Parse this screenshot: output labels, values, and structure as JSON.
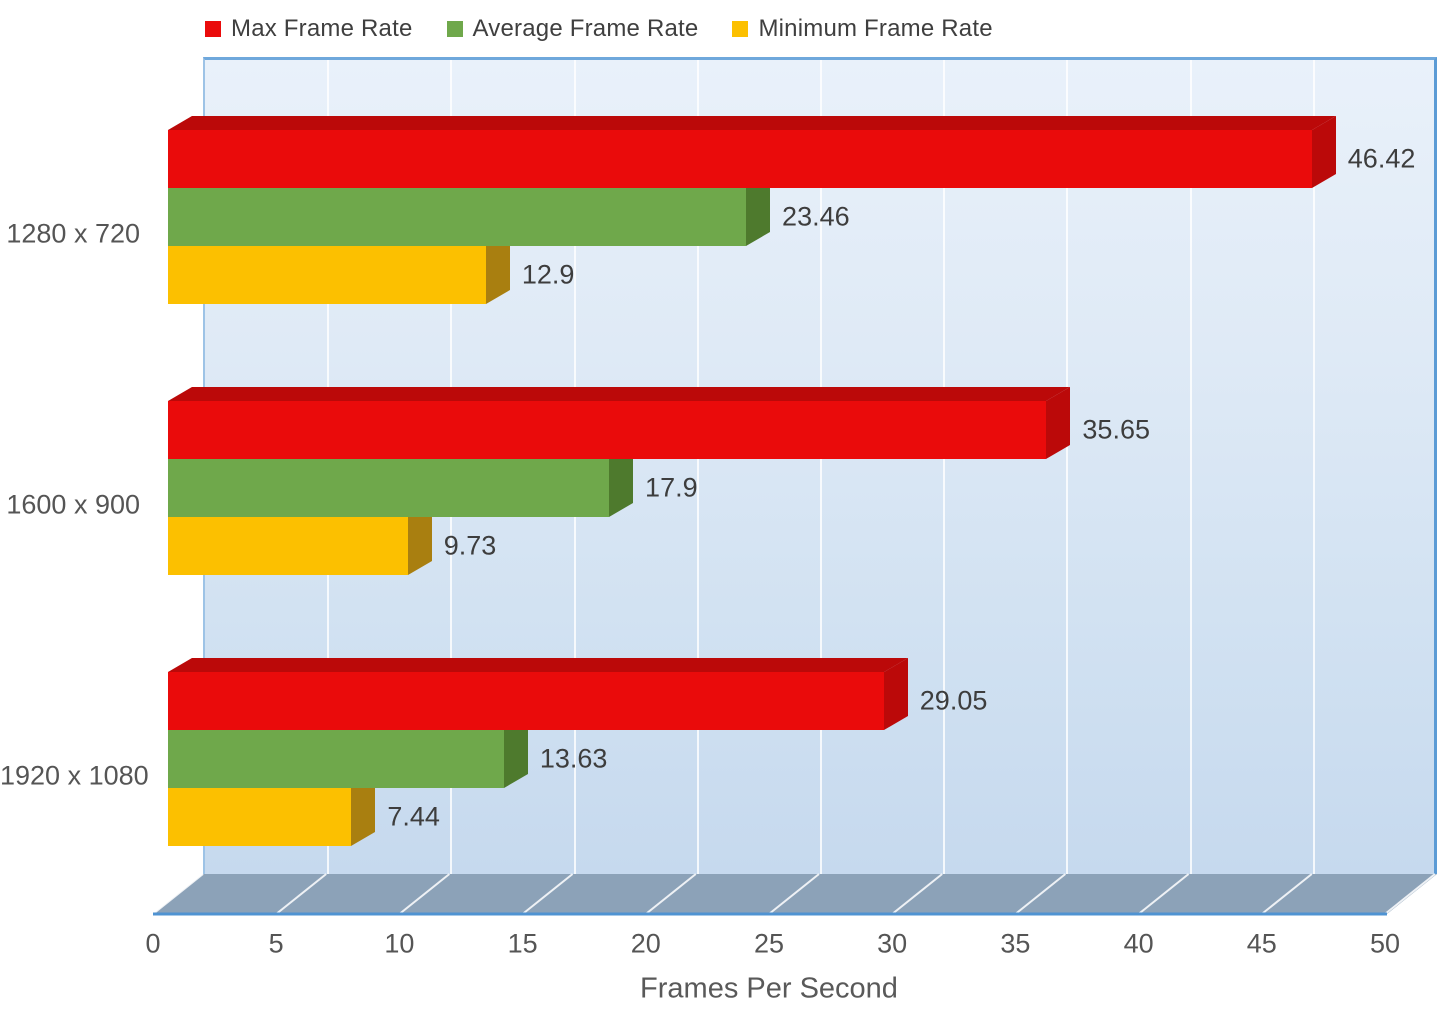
{
  "chart_data": {
    "type": "bar",
    "orientation": "horizontal",
    "title": "",
    "xlabel": "Frames Per Second",
    "categories": [
      "1280 x 720",
      "1600 x 900",
      "1920 x 1080"
    ],
    "series": [
      {
        "name": "Max Frame Rate",
        "color": "#ea0b0b",
        "color_dark": "#bb0909",
        "values": [
          46.42,
          35.65,
          29.05
        ]
      },
      {
        "name": "Average Frame Rate",
        "color": "#6fa84b",
        "color_dark": "#4e7a2d",
        "values": [
          23.46,
          17.9,
          13.63
        ]
      },
      {
        "name": "Minimum Frame Rate",
        "color": "#fcc000",
        "color_dark": "#a97f10",
        "values": [
          12.9,
          9.73,
          7.44
        ]
      }
    ],
    "xlim": [
      0,
      50
    ],
    "xticks": [
      0,
      5,
      10,
      15,
      20,
      25,
      30,
      35,
      40,
      45,
      50
    ],
    "grid": true,
    "legend_position": "top",
    "value_labels": true,
    "wall_color_top": "#e9f1fa",
    "wall_color_bottom": "#c6d9ee",
    "floor_color": "#8ca2b8",
    "floor_edge_color": "#4f93d2"
  }
}
